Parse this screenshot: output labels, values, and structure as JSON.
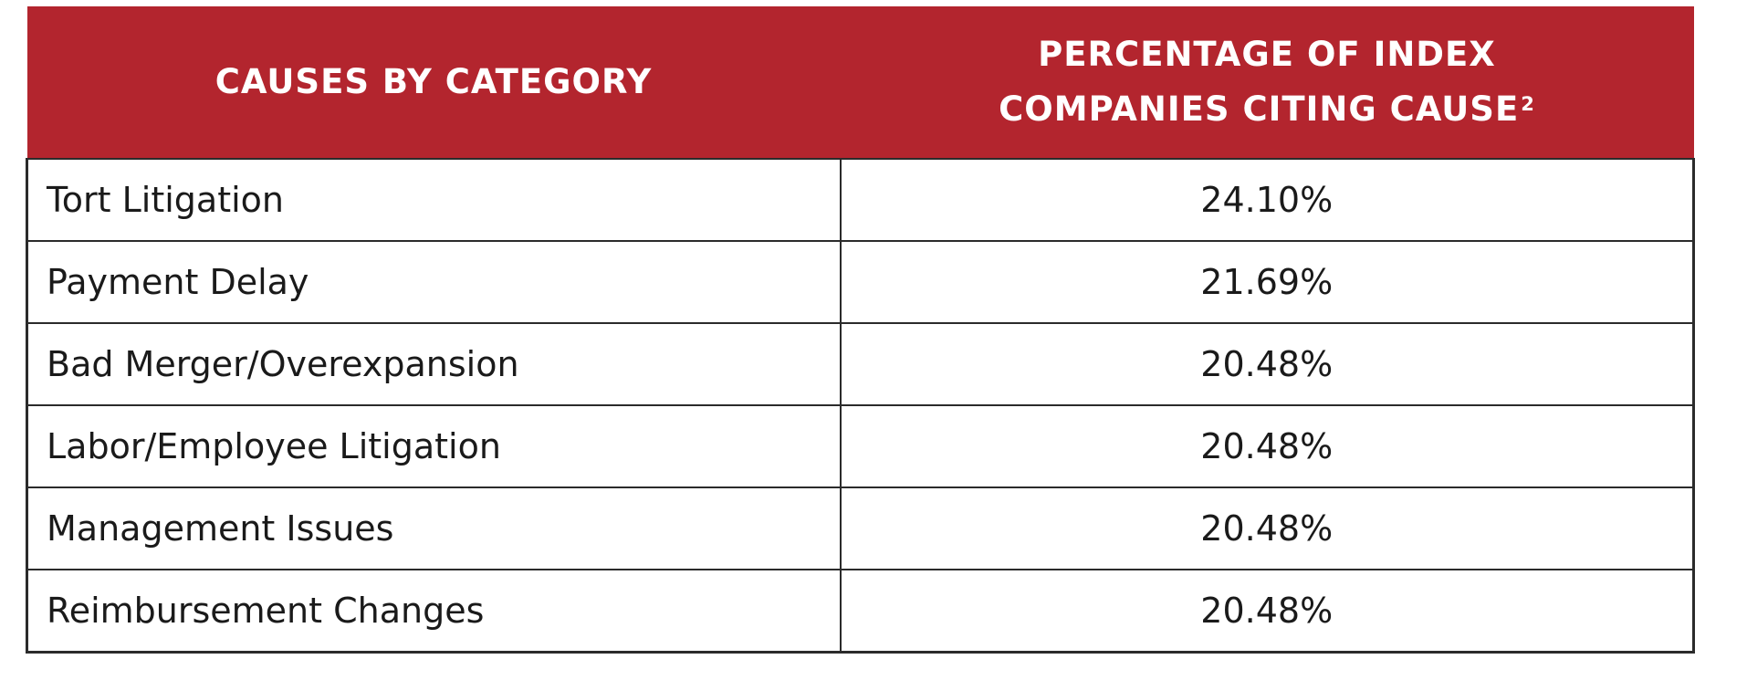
{
  "chart_data": {
    "type": "table",
    "columns": [
      "CAUSES BY CATEGORY",
      "PERCENTAGE OF INDEX COMPANIES CITING CAUSE²"
    ],
    "header": {
      "col1": "CAUSES BY CATEGORY",
      "col2_line1": "PERCENTAGE OF INDEX",
      "col2_line2": "COMPANIES CITING CAUSE",
      "col2_sup": "2"
    },
    "rows": [
      {
        "category": "Tort Litigation",
        "percent": "24.10%"
      },
      {
        "category": "Payment Delay",
        "percent": "21.69%"
      },
      {
        "category": "Bad Merger/Overexpansion",
        "percent": "20.48%"
      },
      {
        "category": "Labor/Employee Litigation",
        "percent": "20.48%"
      },
      {
        "category": "Management Issues",
        "percent": "20.48%"
      },
      {
        "category": "Reimbursement Changes",
        "percent": "20.48%"
      }
    ],
    "colors": {
      "header_bg": "#b3252e",
      "header_text": "#ffffff",
      "border": "#2b2b2b"
    }
  }
}
